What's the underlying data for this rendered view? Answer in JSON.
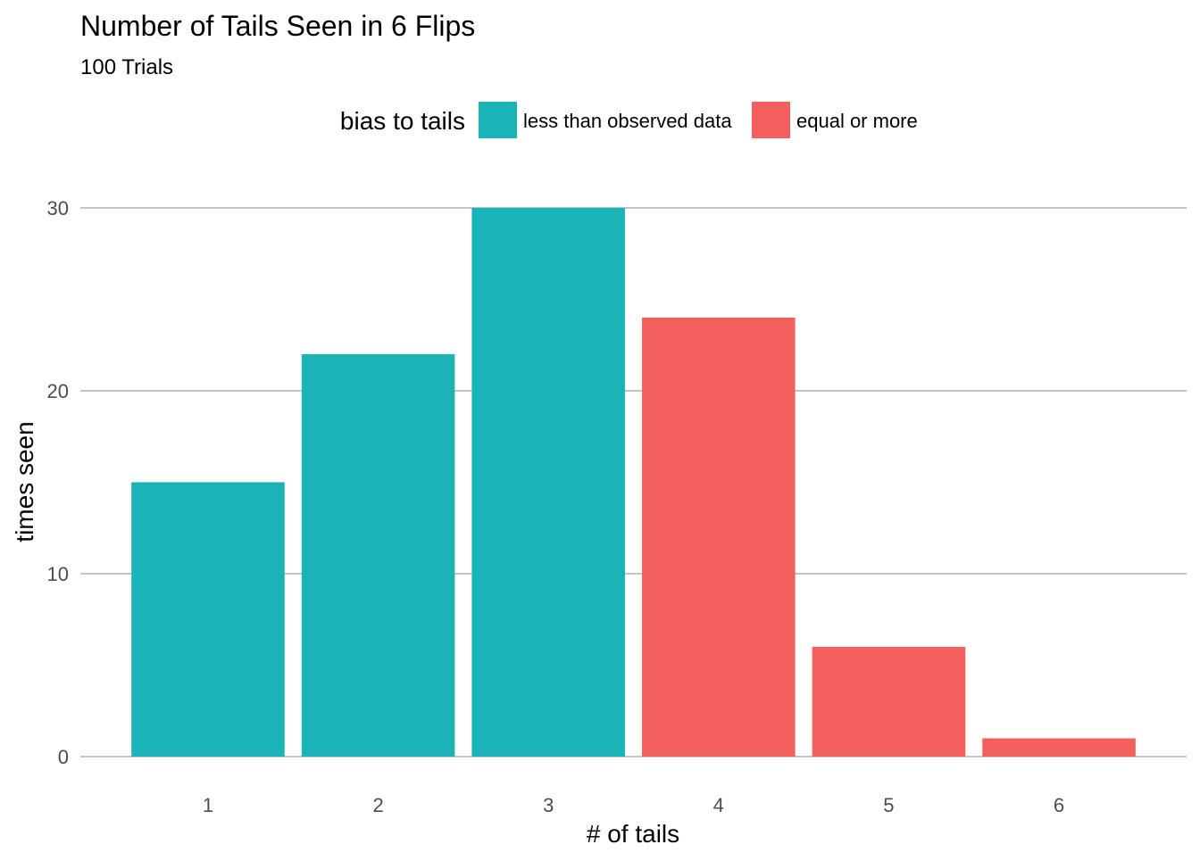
{
  "chart_data": {
    "type": "bar",
    "title": "Number of Tails Seen in 6 Flips",
    "subtitle": "100 Trials",
    "xlabel": "# of tails",
    "ylabel": "times seen",
    "categories": [
      "1",
      "2",
      "3",
      "4",
      "5",
      "6"
    ],
    "values": [
      15,
      22,
      30,
      24,
      6,
      1
    ],
    "groups": [
      "less than observed data",
      "less than observed data",
      "less than observed data",
      "equal or more",
      "equal or more",
      "equal or more"
    ],
    "ylim": [
      0,
      30
    ],
    "yticks": [
      0,
      10,
      20,
      30
    ],
    "grid": "horizontal major lines",
    "legend": {
      "title": "bias to tails",
      "position": "top",
      "entries": [
        {
          "label": "less than observed data",
          "color": "#19B3B8"
        },
        {
          "label": "equal or more",
          "color": "#F35F5C"
        }
      ]
    }
  }
}
